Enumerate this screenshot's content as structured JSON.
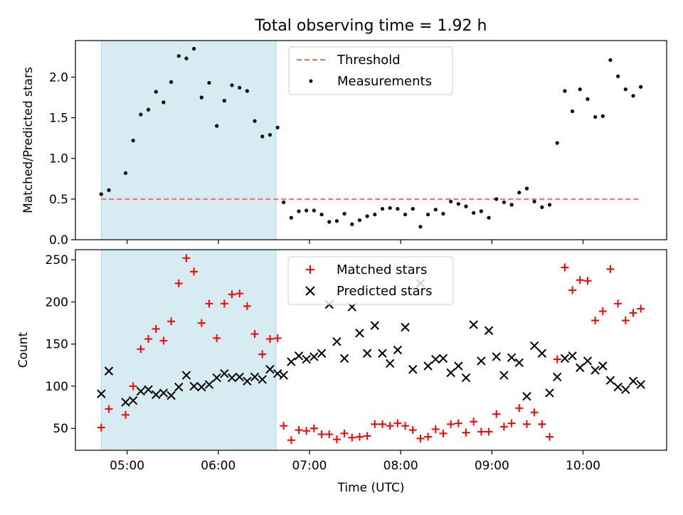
{
  "figure": {
    "title": "Total observing time = 1.92 h"
  },
  "chart_data": [
    {
      "type": "scatter",
      "ylabel": "Matched/Predicted stars",
      "xlabel": "",
      "xlim": [
        "04:26",
        "10:55"
      ],
      "ylim": [
        0,
        2.45
      ],
      "x_ticks": [
        "05:00",
        "06:00",
        "07:00",
        "08:00",
        "09:00",
        "10:00"
      ],
      "y_ticks": [
        0.0,
        0.5,
        1.0,
        1.5,
        2.0
      ],
      "y_tick_labels": [
        "0.0",
        "0.5",
        "1.0",
        "1.5",
        "2.0"
      ],
      "shaded_span": {
        "x_start": "04:43",
        "x_end": "06:38",
        "color": "#add8e6"
      },
      "legend_position": "top-center",
      "threshold": {
        "name": "Threshold",
        "value": 0.5,
        "x_start": "04:43",
        "x_end": "10:38",
        "color": "#ff6666",
        "style": "dashed"
      },
      "series": [
        {
          "name": "Measurements",
          "marker": "dot",
          "color": "#000000",
          "x": [
            "04:43",
            "04:48",
            "04:59",
            "05:04",
            "05:09",
            "05:14",
            "05:19",
            "05:24",
            "05:29",
            "05:34",
            "05:39",
            "05:44",
            "05:49",
            "05:54",
            "05:59",
            "06:04",
            "06:09",
            "06:14",
            "06:19",
            "06:24",
            "06:29",
            "06:34",
            "06:39",
            "06:43",
            "06:48",
            "06:53",
            "06:58",
            "07:03",
            "07:08",
            "07:13",
            "07:18",
            "07:23",
            "07:28",
            "07:33",
            "07:38",
            "07:43",
            "07:48",
            "07:53",
            "07:58",
            "08:03",
            "08:08",
            "08:13",
            "08:18",
            "08:23",
            "08:28",
            "08:33",
            "08:38",
            "08:43",
            "08:48",
            "08:53",
            "08:58",
            "09:03",
            "09:08",
            "09:13",
            "09:18",
            "09:23",
            "09:28",
            "09:33",
            "09:38",
            "09:43",
            "09:48",
            "09:53",
            "09:58",
            "10:03",
            "10:08",
            "10:13",
            "10:18",
            "10:23",
            "10:28",
            "10:33",
            "10:38"
          ],
          "y": [
            0.56,
            0.61,
            0.82,
            1.22,
            1.54,
            1.6,
            1.82,
            1.69,
            1.94,
            2.26,
            2.23,
            2.35,
            1.75,
            1.93,
            1.4,
            1.71,
            1.9,
            1.87,
            1.83,
            1.46,
            1.27,
            1.29,
            1.38,
            0.46,
            0.27,
            0.35,
            0.36,
            0.36,
            0.31,
            0.22,
            0.23,
            0.32,
            0.19,
            0.24,
            0.29,
            0.31,
            0.38,
            0.39,
            0.38,
            0.31,
            0.38,
            0.16,
            0.31,
            0.37,
            0.32,
            0.47,
            0.44,
            0.41,
            0.33,
            0.35,
            0.27,
            0.5,
            0.46,
            0.43,
            0.58,
            0.63,
            0.47,
            0.4,
            0.43,
            1.19,
            1.83,
            1.58,
            1.85,
            1.73,
            1.51,
            1.52,
            2.21,
            2.01,
            1.85,
            1.77,
            1.88
          ]
        }
      ]
    },
    {
      "type": "scatter",
      "ylabel": "Count",
      "xlabel": "Time (UTC)",
      "xlim": [
        "04:26",
        "10:55"
      ],
      "ylim": [
        24,
        262
      ],
      "x_ticks": [
        "05:00",
        "06:00",
        "07:00",
        "08:00",
        "09:00",
        "10:00"
      ],
      "y_ticks": [
        50,
        100,
        150,
        200,
        250
      ],
      "y_tick_labels": [
        "50",
        "100",
        "150",
        "200",
        "250"
      ],
      "shaded_span": {
        "x_start": "04:43",
        "x_end": "06:38",
        "color": "#add8e6"
      },
      "legend_position": "top-center",
      "series": [
        {
          "name": "Matched stars",
          "marker": "plus",
          "color": "#ff0000",
          "x": [
            "04:43",
            "04:48",
            "04:59",
            "05:04",
            "05:09",
            "05:14",
            "05:19",
            "05:24",
            "05:29",
            "05:34",
            "05:39",
            "05:44",
            "05:49",
            "05:54",
            "05:59",
            "06:04",
            "06:09",
            "06:14",
            "06:19",
            "06:24",
            "06:29",
            "06:34",
            "06:39",
            "06:43",
            "06:48",
            "06:53",
            "06:58",
            "07:03",
            "07:08",
            "07:13",
            "07:18",
            "07:23",
            "07:28",
            "07:33",
            "07:38",
            "07:43",
            "07:48",
            "07:53",
            "07:58",
            "08:03",
            "08:08",
            "08:13",
            "08:18",
            "08:23",
            "08:28",
            "08:33",
            "08:38",
            "08:43",
            "08:48",
            "08:53",
            "08:58",
            "09:03",
            "09:08",
            "09:13",
            "09:18",
            "09:23",
            "09:28",
            "09:33",
            "09:38",
            "09:43",
            "09:48",
            "09:53",
            "09:58",
            "10:03",
            "10:08",
            "10:13",
            "10:18",
            "10:23",
            "10:28",
            "10:33",
            "10:38"
          ],
          "y": [
            51,
            73,
            66,
            100,
            144,
            156,
            168,
            154,
            177,
            222,
            252,
            236,
            175,
            198,
            157,
            198,
            209,
            210,
            195,
            162,
            138,
            156,
            157,
            53,
            36,
            48,
            47,
            50,
            43,
            43,
            37,
            44,
            39,
            40,
            41,
            55,
            55,
            53,
            56,
            53,
            48,
            38,
            40,
            49,
            44,
            55,
            56,
            45,
            58,
            46,
            46,
            67,
            52,
            56,
            74,
            55,
            69,
            55,
            40,
            132,
            241,
            214,
            226,
            225,
            178,
            189,
            239,
            198,
            178,
            187,
            192
          ]
        },
        {
          "name": "Predicted stars",
          "marker": "x",
          "color": "#000000",
          "x": [
            "04:43",
            "04:48",
            "04:59",
            "05:04",
            "05:09",
            "05:14",
            "05:19",
            "05:24",
            "05:29",
            "05:34",
            "05:39",
            "05:44",
            "05:49",
            "05:54",
            "05:59",
            "06:04",
            "06:09",
            "06:14",
            "06:19",
            "06:24",
            "06:29",
            "06:34",
            "06:39",
            "06:43",
            "06:48",
            "06:53",
            "06:58",
            "07:03",
            "07:08",
            "07:13",
            "07:18",
            "07:23",
            "07:28",
            "07:33",
            "07:38",
            "07:43",
            "07:48",
            "07:53",
            "07:58",
            "08:03",
            "08:08",
            "08:13",
            "08:18",
            "08:23",
            "08:28",
            "08:33",
            "08:38",
            "08:43",
            "08:48",
            "08:53",
            "08:58",
            "09:03",
            "09:08",
            "09:13",
            "09:18",
            "09:23",
            "09:28",
            "09:33",
            "09:38",
            "09:43",
            "09:48",
            "09:53",
            "09:58",
            "10:03",
            "10:08",
            "10:13",
            "10:18",
            "10:23",
            "10:28",
            "10:33",
            "10:38"
          ],
          "y": [
            91,
            118,
            81,
            83,
            94,
            96,
            90,
            92,
            89,
            99,
            113,
            100,
            99,
            102,
            110,
            115,
            110,
            111,
            106,
            111,
            108,
            120,
            115,
            113,
            129,
            136,
            132,
            135,
            139,
            197,
            153,
            133,
            194,
            163,
            139,
            172,
            139,
            127,
            143,
            170,
            120,
            222,
            124,
            132,
            133,
            116,
            124,
            110,
            173,
            130,
            166,
            135,
            113,
            134,
            128,
            88,
            148,
            139,
            92,
            111,
            133,
            136,
            122,
            130,
            119,
            124,
            107,
            99,
            96,
            106,
            102
          ]
        }
      ]
    }
  ]
}
